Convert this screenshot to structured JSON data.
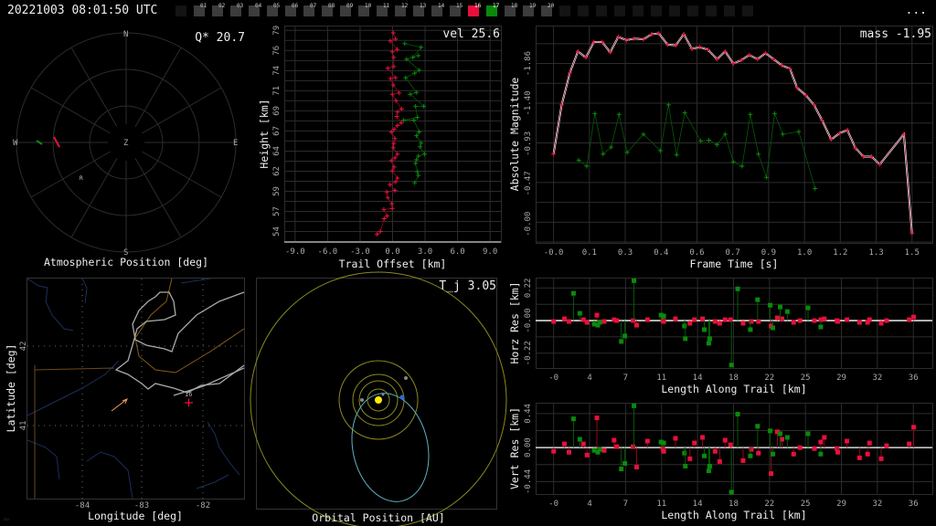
{
  "topbar": {
    "timestamp": "20221003 08:01:50 UTC",
    "frames": [
      {
        "label": "",
        "state": "off"
      },
      {
        "label": "01",
        "state": "on"
      },
      {
        "label": "02",
        "state": "on"
      },
      {
        "label": "03",
        "state": "on"
      },
      {
        "label": "04",
        "state": "on"
      },
      {
        "label": "05",
        "state": "on"
      },
      {
        "label": "06",
        "state": "on"
      },
      {
        "label": "07",
        "state": "on"
      },
      {
        "label": "08",
        "state": "on"
      },
      {
        "label": "09",
        "state": "on"
      },
      {
        "label": "10",
        "state": "on"
      },
      {
        "label": "11",
        "state": "on"
      },
      {
        "label": "12",
        "state": "on"
      },
      {
        "label": "13",
        "state": "on"
      },
      {
        "label": "14",
        "state": "on"
      },
      {
        "label": "15",
        "state": "on"
      },
      {
        "label": "16",
        "state": "red"
      },
      {
        "label": "17",
        "state": "green"
      },
      {
        "label": "18",
        "state": "on"
      },
      {
        "label": "19",
        "state": "on"
      },
      {
        "label": "20",
        "state": "on"
      },
      {
        "label": "",
        "state": "off"
      },
      {
        "label": "",
        "state": "off"
      },
      {
        "label": "",
        "state": "off"
      },
      {
        "label": "",
        "state": "off"
      },
      {
        "label": "",
        "state": "off"
      },
      {
        "label": "",
        "state": "off"
      },
      {
        "label": "",
        "state": "off"
      },
      {
        "label": "",
        "state": "off"
      },
      {
        "label": "",
        "state": "off"
      },
      {
        "label": "",
        "state": "off"
      },
      {
        "label": "",
        "state": "off"
      }
    ],
    "more_label": "..."
  },
  "colors": {
    "red": "#e8103a",
    "green": "#0a8a0a",
    "grid": "#2c2c2c",
    "axis": "#dddddd",
    "frame_on": "#3c3c3c",
    "frame_off": "#141414"
  },
  "polar": {
    "title": "Atmospheric Position [deg]",
    "metric": "Q* 20.7",
    "dirs": {
      "n": "N",
      "s": "S",
      "e": "E",
      "w": "W",
      "z": "Z"
    },
    "marker": "R"
  },
  "map": {
    "xlabel": "Longitude [deg]",
    "ylabel": "Latitude [deg]",
    "xticks": [
      "-84",
      "-83",
      "-82"
    ],
    "yticks": [
      "42",
      "41"
    ],
    "station_label": "16"
  },
  "orbit": {
    "title": "Orbital Position [AU]",
    "metric": "T_j 3.05"
  },
  "chart_data": [
    {
      "id": "height",
      "type": "scatter",
      "title": "",
      "metric": "vel 25.6",
      "xlabel": "Trail Offset [km]",
      "ylabel": "Height [km]",
      "xlim": [
        -10,
        10
      ],
      "ylim": [
        52.7,
        79.6
      ],
      "xticks": [
        -9,
        -6,
        -3,
        0,
        3,
        6,
        9
      ],
      "xtick_labels": [
        "-9.0",
        "-6.0",
        "-3.0",
        "0.0",
        "3.0",
        "6.0",
        "9.0"
      ],
      "yticks": [
        54,
        56.5,
        59,
        61.5,
        64,
        66.5,
        69,
        71.5,
        74,
        76.5,
        79
      ],
      "ytick_labels": [
        "54",
        "57",
        "59",
        "62",
        "64",
        "67",
        "69",
        "71",
        "74",
        "76",
        "79"
      ],
      "series": [
        {
          "name": "red",
          "color": "#e8103a",
          "x": [
            0.06,
            0.28,
            -0.22,
            0.42,
            -0.03,
            0.11,
            0.11,
            -0.45,
            0.28,
            -0.2,
            0.06,
            0.61,
            -0.03,
            0.31,
            0.84,
            0.45,
            0.39,
            0.81,
            0.45,
            0.14,
            -0.11,
            0.22,
            0.11,
            0.06,
            0.45,
            0.22,
            -0.11,
            0.14,
            -0.03,
            0.45,
            0.28,
            -0.25,
            0.22,
            -0.53,
            -0.45,
            -0.06,
            -0.03,
            -0.81,
            -0.5,
            -0.78,
            -1.12,
            -1.43
          ],
          "y": [
            78.69,
            77.93,
            77.7,
            76.63,
            76.33,
            75.64,
            74.5,
            74.31,
            73.12,
            73.01,
            72.21,
            71.21,
            71.06,
            70.26,
            69.23,
            68.85,
            68.31,
            67.51,
            67.17,
            66.71,
            66.37,
            65.56,
            64.95,
            64.42,
            63.62,
            63.16,
            62.82,
            62.02,
            61.56,
            60.64,
            60.18,
            59.84,
            59.11,
            58.92,
            58.24,
            57.44,
            56.86,
            56.75,
            55.95,
            55.6,
            54.0,
            53.66
          ]
        },
        {
          "name": "green",
          "color": "#0a8a0a",
          "x": [
            1.12,
            2.63,
            1.87,
            2.38,
            1.29,
            2.46,
            2.04,
            1.2,
            2.21,
            1.62,
            2.88,
            2.12,
            2.29,
            1.03,
            1.96,
            2.46,
            2.21,
            2.63,
            2.54,
            2.96,
            2.38,
            2.21,
            2.12,
            2.29,
            2.38,
            2.04
          ],
          "y": [
            77.36,
            76.9,
            75.64,
            75.87,
            75.42,
            74.04,
            73.69,
            73.12,
            71.29,
            71.06,
            69.57,
            69.57,
            68.2,
            67.85,
            67.85,
            66.37,
            65.91,
            65.0,
            64.53,
            63.62,
            63.39,
            62.93,
            62.47,
            61.44,
            60.98,
            60.06
          ]
        }
      ]
    },
    {
      "id": "magnitude",
      "type": "line",
      "title": "",
      "metric": "mass -1.95",
      "xlabel": "Frame Time [s]",
      "ylabel": "Absolute Magnitude",
      "xlim": [
        -0.075,
        1.585
      ],
      "ylim": [
        0.22,
        -2.3
      ],
      "xticks": [
        0,
        0.15,
        0.3,
        0.45,
        0.6,
        0.75,
        0.9,
        1.05,
        1.2,
        1.35,
        1.5
      ],
      "xtick_labels": [
        "-0.0",
        "0.1",
        "0.3",
        "0.4",
        "0.6",
        "0.7",
        "0.9",
        "1.0",
        "1.2",
        "1.3",
        "1.5"
      ],
      "yticks": [
        0.0,
        -0.47,
        -0.93,
        -1.4,
        -1.86
      ],
      "ytick_labels": [
        "-0.00",
        "-0.47",
        "-0.93",
        "-1.40",
        "-1.86"
      ],
      "series": [
        {
          "name": "red",
          "color": "#e8103a",
          "fit": true,
          "x": [
            0,
            0.034,
            0.068,
            0.102,
            0.135,
            0.169,
            0.203,
            0.237,
            0.271,
            0.305,
            0.338,
            0.376,
            0.41,
            0.44,
            0.477,
            0.511,
            0.545,
            0.579,
            0.612,
            0.646,
            0.684,
            0.718,
            0.752,
            0.786,
            0.819,
            0.853,
            0.887,
            0.921,
            0.955,
            0.989,
            1.019,
            1.056,
            1.09,
            1.124,
            1.162,
            1.196,
            1.229,
            1.263,
            1.297,
            1.331,
            1.365,
            1.466,
            1.5
          ],
          "y": [
            -0.81,
            -1.38,
            -1.75,
            -2.0,
            -1.93,
            -2.11,
            -2.11,
            -1.99,
            -2.17,
            -2.13,
            -2.15,
            -2.14,
            -2.2,
            -2.21,
            -2.08,
            -2.07,
            -2.2,
            -2.03,
            -2.05,
            -2.02,
            -1.91,
            -2.0,
            -1.86,
            -1.9,
            -1.96,
            -1.91,
            -1.98,
            -1.91,
            -1.84,
            -1.8,
            -1.58,
            -1.49,
            -1.38,
            -1.2,
            -0.98,
            -1.05,
            -1.09,
            -0.88,
            -0.78,
            -0.78,
            -0.69,
            -1.04,
            0.11
          ]
        },
        {
          "name": "green",
          "color": "#0a8a0a",
          "x": [
            0.105,
            0.139,
            0.173,
            0.207,
            0.241,
            0.274,
            0.308,
            0.376,
            0.447,
            0.481,
            0.515,
            0.549,
            0.616,
            0.65,
            0.684,
            0.718,
            0.752,
            0.789,
            0.823,
            0.857,
            0.891,
            0.925,
            0.959,
            1.026,
            1.094
          ],
          "y": [
            -0.74,
            -0.67,
            -1.28,
            -0.81,
            -0.89,
            -1.27,
            -0.83,
            -1.04,
            -0.85,
            -1.38,
            -0.8,
            -1.29,
            -0.96,
            -0.97,
            -0.92,
            -1.04,
            -0.72,
            -0.67,
            -1.27,
            -0.81,
            -0.54,
            -1.28,
            -1.04,
            -1.07,
            -0.41
          ]
        }
      ]
    },
    {
      "id": "horz",
      "type": "scatter",
      "title": "",
      "xlabel": "Length Along Trail [km]",
      "ylabel": "Horz Res [km]",
      "xlim": [
        -1.8,
        37.9
      ],
      "ylim": [
        -0.32,
        0.29
      ],
      "xticks": [
        0,
        3.6,
        7.2,
        10.8,
        14.4,
        18,
        21.6,
        25.2,
        28.8,
        32.4,
        36
      ],
      "xtick_labels": [
        "-0",
        "4",
        "7",
        "11",
        "14",
        "18",
        "22",
        "25",
        "29",
        "32",
        "36"
      ],
      "yticks": [
        0.22,
        0,
        -0.22
      ],
      "ytick_labels": [
        "0.22",
        "-0.00",
        "-0.22"
      ],
      "series": [
        {
          "name": "red",
          "color": "#e8103a",
          "x": [
            0,
            1.08,
            1.54,
            2.98,
            3.34,
            4.33,
            5.06,
            6.05,
            6.32,
            7.95,
            8.31,
            9.39,
            10.93,
            11.02,
            12.19,
            13.64,
            14.09,
            14.9,
            16.16,
            16.62,
            17.16,
            17.7,
            18.96,
            19.78,
            20.5,
            21.76,
            22.39,
            22.85,
            24.02,
            24.65,
            26.1,
            26.73,
            27.09,
            28.35,
            28.44,
            29.35,
            30.61,
            31.42,
            31.61,
            32.78,
            33.32,
            35.58,
            36.03
          ],
          "y": [
            -0.006,
            0.012,
            -0.006,
            0.006,
            -0.012,
            0.037,
            -0.006,
            0.006,
            0,
            0,
            -0.031,
            0.006,
            0,
            -0.006,
            0.012,
            -0.018,
            0.006,
            0.012,
            -0.006,
            -0.018,
            0.006,
            0.006,
            -0.018,
            -0.006,
            -0.006,
            -0.037,
            0.018,
            0.012,
            -0.012,
            0,
            0,
            0.006,
            0.012,
            0,
            -0.006,
            0.006,
            -0.012,
            -0.012,
            0.006,
            -0.018,
            0,
            0.006,
            0.024
          ]
        },
        {
          "name": "green",
          "color": "#0a8a0a",
          "x": [
            1.99,
            2.62,
            4.06,
            4.42,
            4.61,
            6.77,
            7.13,
            8.04,
            10.75,
            11.02,
            13.09,
            13.18,
            15.08,
            15.53,
            15.62,
            17.79,
            18.42,
            19.69,
            20.41,
            21.67,
            21.94,
            22.67,
            23.39,
            25.46,
            26.73
          ],
          "y": [
            0.184,
            0.049,
            -0.024,
            -0.031,
            -0.012,
            -0.141,
            -0.104,
            0.269,
            0.037,
            0.031,
            -0.037,
            -0.122,
            -0.061,
            -0.153,
            -0.122,
            -0.3,
            0.214,
            -0.061,
            0.141,
            0.104,
            -0.049,
            0.092,
            0.061,
            0.086,
            -0.043
          ]
        }
      ]
    },
    {
      "id": "vert",
      "type": "scatter",
      "title": "",
      "xlabel": "Length Along Trail [km]",
      "ylabel": "Vert Res [km]",
      "xlim": [
        -1.8,
        37.9
      ],
      "ylim": [
        -0.6,
        0.58
      ],
      "xticks": [
        0,
        3.6,
        7.2,
        10.8,
        14.4,
        18,
        21.6,
        25.2,
        28.8,
        32.4,
        36
      ],
      "xtick_labels": [
        "-0",
        "4",
        "7",
        "11",
        "14",
        "18",
        "22",
        "25",
        "29",
        "32",
        "36"
      ],
      "yticks": [
        0.44,
        0,
        -0.44
      ],
      "ytick_labels": [
        "0.44",
        "0.00",
        "-0.44"
      ],
      "series": [
        {
          "name": "red",
          "color": "#e8103a",
          "x": [
            0,
            1.08,
            1.54,
            2.98,
            3.34,
            4.33,
            5.06,
            6.05,
            6.32,
            7.95,
            8.31,
            9.39,
            10.93,
            11.02,
            12.19,
            13.64,
            14.09,
            14.9,
            16.16,
            16.62,
            17.16,
            17.7,
            18.96,
            19.78,
            20.5,
            21.76,
            22.39,
            22.85,
            24.02,
            24.65,
            26.1,
            26.73,
            27.09,
            28.35,
            28.44,
            29.35,
            30.61,
            31.42,
            31.61,
            32.78,
            33.32,
            35.58,
            36.03
          ],
          "y": [
            -0.048,
            0.048,
            -0.06,
            0.048,
            -0.096,
            0.384,
            -0.036,
            0.096,
            0.012,
            0.012,
            -0.252,
            0.084,
            -0.012,
            -0.048,
            0.12,
            -0.144,
            0.06,
            0.132,
            -0.048,
            -0.18,
            0.096,
            0.036,
            -0.168,
            -0.024,
            -0.072,
            -0.336,
            0.204,
            0.108,
            -0.084,
            0,
            -0.012,
            0.072,
            0.132,
            -0.012,
            -0.06,
            0.084,
            -0.132,
            -0.084,
            0.06,
            -0.144,
            0.024,
            0.048,
            0.264
          ]
        },
        {
          "name": "green",
          "color": "#0a8a0a",
          "x": [
            1.99,
            2.62,
            4.06,
            4.42,
            4.61,
            6.77,
            7.13,
            8.04,
            10.75,
            11.02,
            13.09,
            13.18,
            15.08,
            15.53,
            15.62,
            17.79,
            18.42,
            19.69,
            20.41,
            21.67,
            21.94,
            22.67,
            23.39,
            25.46,
            26.73
          ],
          "y": [
            0.372,
            0.108,
            -0.036,
            -0.06,
            -0.024,
            -0.276,
            -0.204,
            0.54,
            0.072,
            0.06,
            -0.072,
            -0.24,
            -0.108,
            -0.3,
            -0.24,
            -0.576,
            0.432,
            -0.108,
            0.276,
            0.216,
            -0.084,
            0.18,
            0.132,
            0.18,
            -0.084
          ]
        }
      ]
    }
  ]
}
